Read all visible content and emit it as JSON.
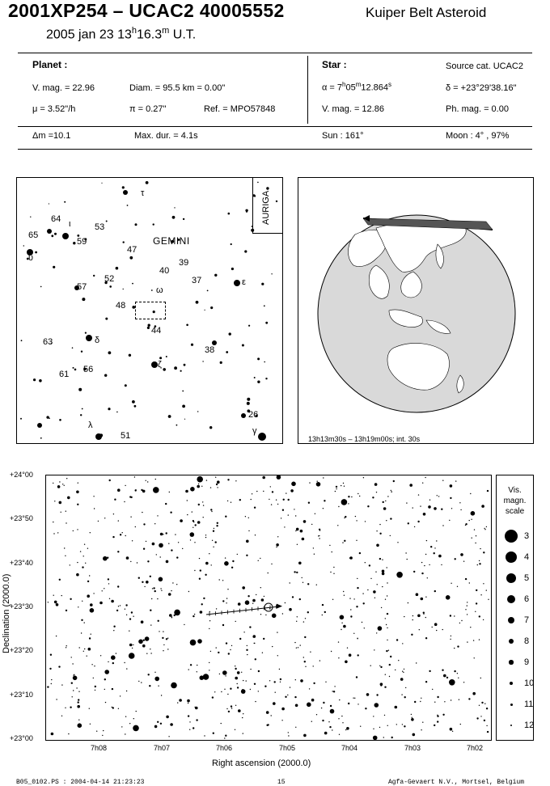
{
  "header": {
    "title": "2001XP254  –  UCAC2 40005552",
    "subtitle": "Kuiper Belt Asteroid",
    "date_prefix": "2005 jan 23  13",
    "date_h": "h",
    "date_mid": "16.3",
    "date_m": "m",
    "date_suffix": " U.T."
  },
  "planet": {
    "heading": "Planet :",
    "vmag": "V. mag. = 22.96",
    "diam": "Diam. = 95.5 km = 0.00\"",
    "mu": "μ =  3.52\"/h",
    "pi": "π =  0.27\"",
    "ref": "Ref. = MPO57848"
  },
  "star": {
    "heading": "Star :",
    "source": "Source cat.  UCAC2",
    "alpha_prefix": "α =  7",
    "alpha_h": "h",
    "alpha_mid": "05",
    "alpha_m": "m",
    "alpha_s": "12.864",
    "alpha_sup": "s",
    "delta": "δ = +23°29'38.16\"",
    "vmag": "V. mag. = 12.86",
    "phmag": "Ph. mag. =  0.00"
  },
  "summary": {
    "dm": "Δm =10.1",
    "maxdur": "Max. dur. = 4.1s",
    "sun": "Sun : 161°",
    "moon": "Moon :   4° , 97%"
  },
  "finder": {
    "constellation": "GEMINI",
    "neighbor": "AURIGA",
    "labels": [
      "τ",
      "64",
      "ι",
      "53",
      "65",
      "59",
      "47",
      "υ",
      "39",
      "40",
      "37",
      "ε",
      "52",
      "57",
      "ω",
      "48",
      "44",
      "δ",
      "63",
      "38",
      "ζ",
      "61",
      "56",
      "26",
      "λ",
      "51",
      "γ"
    ]
  },
  "globe": {
    "caption": "13h13m30s – 13h19m00s; int. 30s"
  },
  "chart": {
    "dec_ticks": [
      "+24°00",
      "+23°50",
      "+23°40",
      "+23°30",
      "+23°20",
      "+23°10",
      "+23°00"
    ],
    "ra_ticks": [
      "7h08",
      "7h07",
      "7h06",
      "7h05",
      "7h04",
      "7h03",
      "7h02"
    ],
    "xlabel": "Right ascension (2000.0)",
    "ylabel": "Declination (2000.0)"
  },
  "scale": {
    "title_line1": "Vis.",
    "title_line2": "magn.",
    "title_line3": "scale",
    "mags": [
      "3",
      "4",
      "5",
      "6",
      "7",
      "8",
      "9",
      "10",
      "11",
      "12"
    ]
  },
  "footer": {
    "left": "B05_0102.PS : 2004-04-14 21:23:23",
    "page": "15",
    "right": "Agfa-Gevaert N.V., Mortsel, Belgium"
  }
}
